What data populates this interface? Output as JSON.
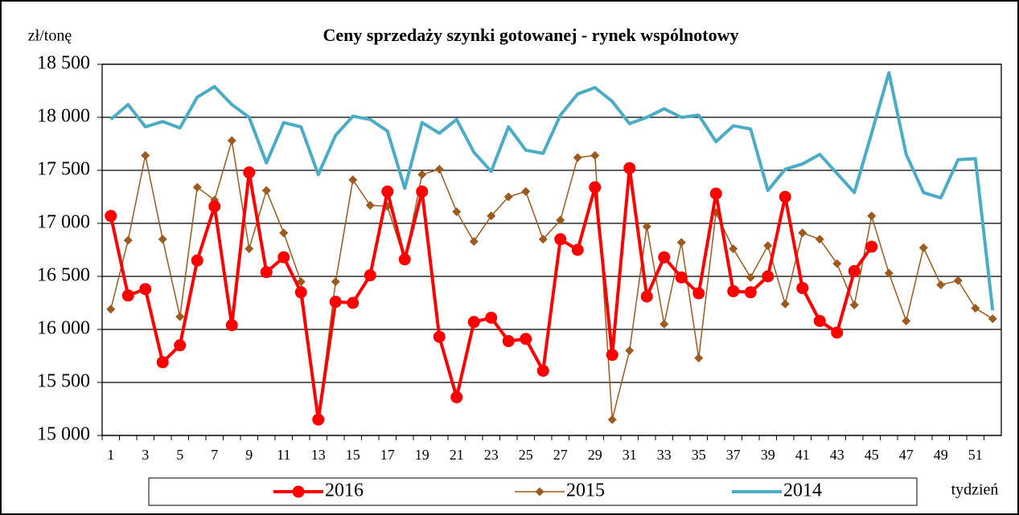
{
  "chart_data": {
    "type": "line",
    "title": "Ceny sprzedaży szynki gotowanej - rynek wspólnotowy",
    "y_label": "zł/tonę",
    "x_label": "tydzień",
    "categories": [
      1,
      null,
      3,
      null,
      5,
      null,
      7,
      null,
      9,
      null,
      11,
      null,
      13,
      null,
      15,
      null,
      17,
      null,
      19,
      null,
      21,
      null,
      23,
      null,
      25,
      null,
      27,
      null,
      29,
      null,
      31,
      null,
      33,
      null,
      35,
      null,
      37,
      null,
      39,
      null,
      41,
      null,
      43,
      null,
      45,
      null,
      47,
      null,
      49,
      null,
      51,
      null
    ],
    "ylim": [
      15000,
      18500
    ],
    "yticks": [
      {
        "value": 15000,
        "label": "15 000"
      },
      {
        "value": 15500,
        "label": "15 500"
      },
      {
        "value": 16000,
        "label": "16 000"
      },
      {
        "value": 16500,
        "label": "16 500"
      },
      {
        "value": 17000,
        "label": "17 000"
      },
      {
        "value": 17500,
        "label": "17 500"
      },
      {
        "value": 18000,
        "label": "18 000"
      },
      {
        "value": 18500,
        "label": "18 500"
      }
    ],
    "grid": true,
    "legend": "bottom",
    "series": [
      {
        "name": "2016",
        "color": "#ff0000",
        "marker": "circle",
        "values": [
          17070,
          16320,
          16380,
          15690,
          15850,
          16650,
          17160,
          16040,
          17480,
          16540,
          16680,
          16350,
          15150,
          16260,
          16250,
          16510,
          17300,
          16660,
          17300,
          15930,
          15360,
          16070,
          16110,
          15890,
          15910,
          15610,
          16850,
          16750,
          17340,
          15760,
          17520,
          16310,
          16680,
          16490,
          16340,
          17280,
          16360,
          16350,
          16500,
          17250,
          16390,
          16080,
          15970,
          16550,
          16780,
          null,
          null,
          null,
          null,
          null,
          null,
          null
        ]
      },
      {
        "name": "2015",
        "color": "#9c5a1e",
        "marker": "diamond",
        "values": [
          16190,
          16840,
          17640,
          16850,
          16120,
          17340,
          17220,
          17780,
          16760,
          17310,
          16910,
          16450,
          15150,
          16450,
          17410,
          17170,
          17160,
          16650,
          17460,
          17510,
          17110,
          16830,
          17070,
          17250,
          17300,
          16850,
          17030,
          17620,
          17640,
          15150,
          15800,
          16970,
          16050,
          16820,
          15730,
          17100,
          16760,
          16490,
          16790,
          16240,
          16910,
          16850,
          16620,
          16230,
          17070,
          16530,
          16080,
          16770,
          16420,
          16460,
          16200,
          16100
        ]
      },
      {
        "name": "2014",
        "color": "#4bacc6",
        "marker": "none",
        "values": [
          17980,
          18120,
          17910,
          17960,
          17900,
          18190,
          18290,
          18120,
          18000,
          17570,
          17950,
          17910,
          17460,
          17830,
          18010,
          17980,
          17870,
          17330,
          17950,
          17850,
          17980,
          17670,
          17490,
          17910,
          17690,
          17660,
          18020,
          18220,
          18280,
          18150,
          17940,
          18000,
          18080,
          18000,
          18020,
          17770,
          17920,
          17890,
          17310,
          17510,
          17560,
          17650,
          17470,
          17290,
          17850,
          18420,
          17650,
          17290,
          17240,
          17600,
          17610,
          16180
        ]
      }
    ]
  }
}
